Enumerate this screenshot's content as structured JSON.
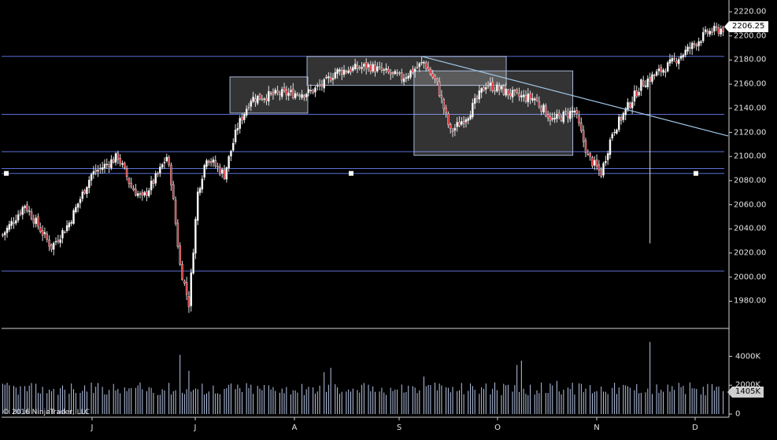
{
  "chart_data": [
    {
      "type": "candlestick",
      "title": "",
      "xlabel": "",
      "ylabel": "",
      "ylim": [
        1970,
        2225
      ],
      "yticks": [
        "2220.00",
        "2200.00",
        "2180.00",
        "2160.00",
        "2140.00",
        "2120.00",
        "2100.00",
        "2080.00",
        "2060.00",
        "2040.00",
        "2020.00",
        "2000.00",
        "1980.00"
      ],
      "yticks_values": [
        2220,
        2200,
        2180,
        2160,
        2140,
        2120,
        2100,
        2080,
        2060,
        2040,
        2020,
        2000,
        1980
      ],
      "xticks": [
        "J",
        "J",
        "A",
        "S",
        "O",
        "N",
        "D"
      ],
      "last_price": "2206.25",
      "horizontal_lines": [
        2183,
        2135,
        2104,
        2090,
        2086,
        2005
      ],
      "boxes": [
        {
          "x_start": 0.316,
          "x_end": 0.4237,
          "y_low": 2136,
          "y_high": 2166
        },
        {
          "x_start": 0.4227,
          "x_end": 0.6983,
          "y_low": 2159,
          "y_high": 2183
        },
        {
          "x_start": 0.5707,
          "x_end": 0.7904,
          "y_low": 2101,
          "y_high": 2171
        }
      ],
      "trendline": {
        "x_start": 0.5816,
        "y_start": 2183,
        "x_end": 1.0,
        "y_end": 2117
      },
      "candles": []
    },
    {
      "type": "bar",
      "title": "",
      "ylabel": "",
      "ylim": [
        0,
        5100
      ],
      "yticks": [
        "4000K",
        "2000K",
        "0"
      ],
      "yticks_values": [
        4000,
        2000,
        0
      ],
      "last_volume": "1405K",
      "values": []
    }
  ],
  "copyright": "© 2016 NinjaTrader, LLC"
}
